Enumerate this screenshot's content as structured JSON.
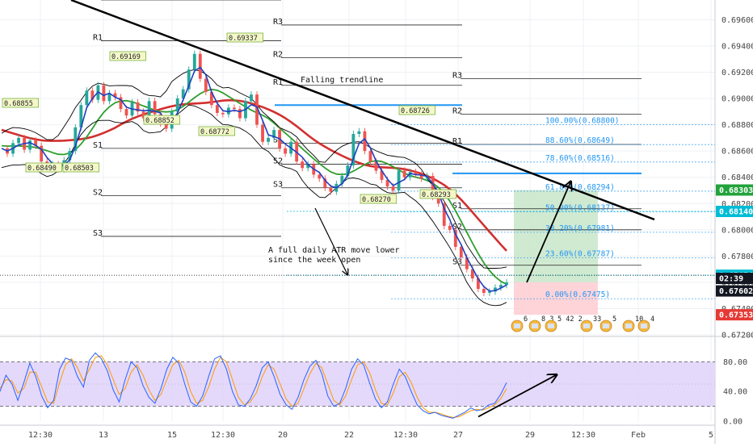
{
  "colors": {
    "candle_up": "#26a69a",
    "candle_down": "#ef5350",
    "ema_fast": "#1e3fbf",
    "sma_mid": "#2e9e2e",
    "sma_slow": "#d32f2f",
    "bands": "#000000",
    "trendline": "#000000",
    "fib_line": "#2196f3",
    "fib_text": "#2196f3",
    "target_zone": "#c8e6c9",
    "stop_zone": "#ffcdd2",
    "stoch_bg": "#e1d5fb",
    "stoch_k": "#2962ff",
    "stoch_d": "#ff9800",
    "price_green": "#22a33b",
    "price_cyan": "#00bcd4",
    "price_black": "#131722",
    "price_red": "#e53935"
  },
  "chart_data": [
    {
      "type": "candlestick",
      "instrument": "",
      "x_ticks": [
        "12:30",
        "13",
        "15",
        "12:30",
        "20",
        "22",
        "12:30",
        "27",
        "29",
        "12:30",
        "Feb",
        "5"
      ],
      "y_ticks": [
        "0.69600",
        "0.69400",
        "0.69200",
        "0.69000",
        "0.68800",
        "0.68600",
        "0.68400",
        "0.68200",
        "0.68000",
        "0.67800",
        "0.67600",
        "0.67400",
        "0.67200"
      ],
      "ylim": [
        0.672,
        0.6975
      ],
      "price_path": [
        0.6862,
        0.6858,
        0.6866,
        0.687,
        0.6861,
        0.6868,
        0.6864,
        0.6852,
        0.6849,
        0.685,
        0.6846,
        0.6853,
        0.686,
        0.6878,
        0.6895,
        0.6906,
        0.6899,
        0.691,
        0.6898,
        0.6904,
        0.6901,
        0.6892,
        0.6887,
        0.6897,
        0.689,
        0.6885,
        0.6898,
        0.6888,
        0.6881,
        0.6877,
        0.689,
        0.69,
        0.6907,
        0.6922,
        0.6934,
        0.6915,
        0.6905,
        0.6895,
        0.6889,
        0.6888,
        0.6893,
        0.6892,
        0.6885,
        0.6898,
        0.6903,
        0.688,
        0.6867,
        0.687,
        0.6876,
        0.6862,
        0.6858,
        0.6867,
        0.6852,
        0.6847,
        0.685,
        0.6842,
        0.6839,
        0.6832,
        0.6829,
        0.6835,
        0.6841,
        0.6849,
        0.6873,
        0.6875,
        0.686,
        0.6852,
        0.6845,
        0.6838,
        0.6833,
        0.683,
        0.6845,
        0.684,
        0.6844,
        0.6842,
        0.6839,
        0.6841,
        0.6825,
        0.682,
        0.6803,
        0.68,
        0.6787,
        0.6779,
        0.677,
        0.6763,
        0.6755,
        0.6752,
        0.6753,
        0.6756,
        0.6758,
        0.676
      ],
      "series": [
        {
          "name": "",
          "role": "fast moving average"
        },
        {
          "name": "",
          "role": "medium moving average"
        },
        {
          "name": "",
          "role": "slow moving average"
        },
        {
          "name": "",
          "role": "price bands"
        }
      ],
      "pivot_levels": [
        {
          "label": "R2",
          "value": 0.6975
        },
        {
          "label": "R1",
          "value": 0.6944
        },
        {
          "label": "S1",
          "value": 0.6862
        },
        {
          "label": "S2",
          "value": 0.6826
        },
        {
          "label": "S3",
          "value": 0.6795
        },
        {
          "label": "R3",
          "value": 0.6956
        },
        {
          "label": "R2",
          "value": 0.6931
        },
        {
          "label": "R1",
          "value": 0.691
        },
        {
          "label": "S1",
          "value": 0.6866
        },
        {
          "label": "S2",
          "value": 0.685
        },
        {
          "label": "S3",
          "value": 0.6832
        },
        {
          "label": "R3",
          "value": 0.6915
        },
        {
          "label": "R2",
          "value": 0.6888
        },
        {
          "label": "R1",
          "value": 0.6865
        },
        {
          "label": "S1",
          "value": 0.6816
        },
        {
          "label": "S2",
          "value": 0.68
        },
        {
          "label": "S3",
          "value": 0.6773
        }
      ],
      "resistance_level": 0.6895,
      "support_level": 0.6843,
      "swing_labels": [
        "0.68855",
        "0.68490",
        "0.68503",
        "0.69169",
        "0.68852",
        "0.68772",
        "0.69337",
        "0.68270",
        "0.68726",
        "0.68293"
      ],
      "fibonacci": [
        {
          "label": "100.00%(0.68800)",
          "value": 0.688
        },
        {
          "label": "88.60%(0.68649)",
          "value": 0.68649
        },
        {
          "label": "78.60%(0.68516)",
          "value": 0.68516
        },
        {
          "label": "61.80%(0.68294)",
          "value": 0.68294
        },
        {
          "label": "50.00%(0.68137)",
          "value": 0.68137
        },
        {
          "label": "38.20%(0.67981)",
          "value": 0.67981
        },
        {
          "label": "23.60%(0.67787)",
          "value": 0.67787
        },
        {
          "label": "0.00%(0.67475)",
          "value": 0.67475
        }
      ],
      "trade": {
        "entry": 0.676,
        "target": 0.68303,
        "stop": 0.67353
      },
      "price_labels": [
        {
          "text": "0.68303",
          "value": 0.68303,
          "color_key": "price_green"
        },
        {
          "text": "0.68140",
          "value": 0.6814,
          "color_key": "price_cyan"
        },
        {
          "text": "0.67654",
          "value": 0.67654,
          "color_key": "price_cyan"
        },
        {
          "text": "02:39",
          "value": 0.6763,
          "color_key": "price_black"
        },
        {
          "text": "0.67602",
          "value": 0.67602,
          "color_key": "price_black"
        },
        {
          "text": "0.67353",
          "value": 0.67353,
          "color_key": "price_red"
        }
      ],
      "annotations": [
        "Falling trendline",
        "A full daily ATR  move lower\n since the week open"
      ],
      "event_badges": [
        "6",
        "8 3",
        "5 42 2",
        "33",
        "5",
        "10",
        "4"
      ]
    },
    {
      "type": "line",
      "title": "",
      "y_ticks": [
        "80.00",
        "40.00",
        "0.00"
      ],
      "ylim": [
        0,
        100
      ],
      "band": [
        20,
        80
      ],
      "series": [
        {
          "name": "",
          "values": [
            40,
            62,
            50,
            28,
            52,
            78,
            60,
            34,
            18,
            28,
            70,
            85,
            82,
            60,
            46,
            82,
            92,
            84,
            68,
            42,
            26,
            56,
            80,
            72,
            48,
            32,
            24,
            44,
            70,
            86,
            78,
            50,
            26,
            20,
            34,
            60,
            84,
            88,
            70,
            40,
            22,
            20,
            30,
            48,
            72,
            80,
            60,
            36,
            22,
            16,
            32,
            56,
            74,
            82,
            64,
            34,
            20,
            24,
            44,
            70,
            84,
            76,
            52,
            30,
            18,
            26,
            50,
            70,
            60,
            40,
            22,
            14,
            10,
            12,
            8,
            6,
            4,
            8,
            12,
            18,
            14,
            16,
            22,
            24,
            36,
            52
          ]
        },
        {
          "name": "",
          "values": [
            44,
            56,
            54,
            38,
            44,
            66,
            66,
            46,
            26,
            24,
            52,
            76,
            84,
            72,
            54,
            70,
            86,
            88,
            76,
            56,
            36,
            44,
            66,
            76,
            62,
            42,
            28,
            36,
            56,
            76,
            82,
            66,
            40,
            24,
            28,
            46,
            70,
            86,
            80,
            56,
            32,
            22,
            26,
            38,
            60,
            76,
            70,
            50,
            30,
            20,
            24,
            44,
            64,
            78,
            72,
            50,
            28,
            22,
            34,
            56,
            76,
            80,
            66,
            42,
            24,
            22,
            38,
            60,
            66,
            52,
            32,
            18,
            12,
            12,
            10,
            7,
            5,
            6,
            10,
            14,
            16,
            15,
            18,
            22,
            30,
            44
          ]
        }
      ]
    }
  ]
}
